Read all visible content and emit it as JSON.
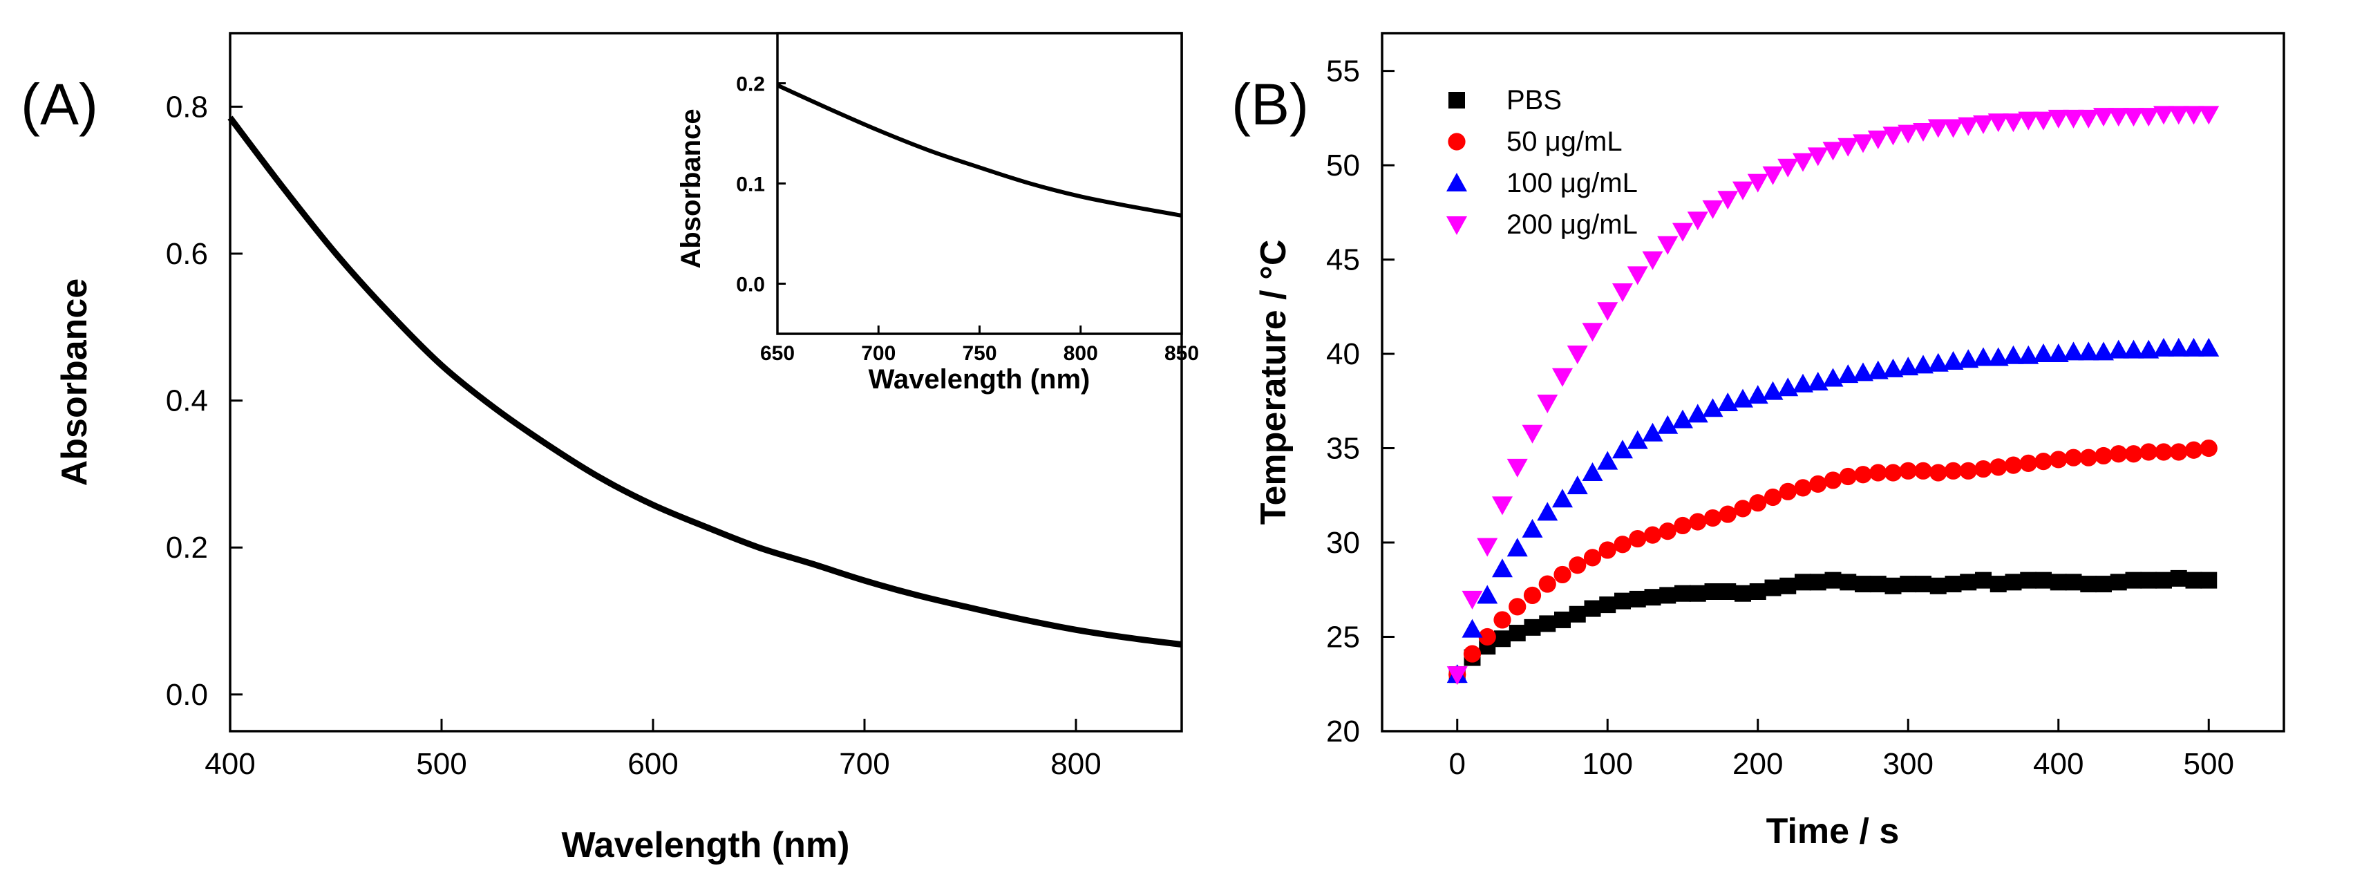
{
  "chart_data": [
    {
      "id": "A",
      "panel_label": "(A)",
      "type": "line",
      "xlabel": "Wavelength (nm)",
      "ylabel": "Absorbance",
      "xlim": [
        400,
        850
      ],
      "ylim": [
        -0.05,
        0.9
      ],
      "xticks": [
        400,
        500,
        600,
        700,
        800
      ],
      "yticks": [
        0.0,
        0.2,
        0.4,
        0.6,
        0.8
      ],
      "xtick_labels": [
        "400",
        "500",
        "600",
        "700",
        "800"
      ],
      "ytick_labels": [
        "0.0",
        "0.2",
        "0.4",
        "0.6",
        "0.8"
      ],
      "series": [
        {
          "name": "Absorbance",
          "color": "#000000",
          "x": [
            400,
            425,
            450,
            475,
            500,
            525,
            550,
            575,
            600,
            625,
            650,
            675,
            700,
            725,
            750,
            775,
            800,
            825,
            850
          ],
          "values": [
            0.785,
            0.69,
            0.6,
            0.52,
            0.448,
            0.39,
            0.34,
            0.295,
            0.258,
            0.228,
            0.2,
            0.178,
            0.155,
            0.135,
            0.118,
            0.102,
            0.088,
            0.077,
            0.068
          ]
        }
      ],
      "inset": {
        "type": "line",
        "xlabel": "Wavelength (nm)",
        "ylabel": "Absorbance",
        "xlim": [
          650,
          850
        ],
        "ylim": [
          -0.05,
          0.25
        ],
        "xticks": [
          650,
          700,
          750,
          800,
          850
        ],
        "yticks": [
          0.0,
          0.1,
          0.2
        ],
        "xtick_labels": [
          "650",
          "700",
          "750",
          "800",
          "850"
        ],
        "ytick_labels": [
          "0.0",
          "0.1",
          "0.2"
        ],
        "x": [
          650,
          675,
          700,
          725,
          750,
          775,
          800,
          825,
          850
        ],
        "values": [
          0.198,
          0.175,
          0.153,
          0.133,
          0.116,
          0.1,
          0.087,
          0.077,
          0.068
        ]
      }
    },
    {
      "id": "B",
      "panel_label": "(B)",
      "type": "scatter",
      "xlabel": "Time / s",
      "ylabel": "Temperature / °C",
      "xlim": [
        -50,
        550
      ],
      "ylim": [
        20,
        57
      ],
      "xticks": [
        0,
        100,
        200,
        300,
        400,
        500
      ],
      "yticks": [
        20,
        25,
        30,
        35,
        40,
        45,
        50,
        55
      ],
      "xtick_labels": [
        "0",
        "100",
        "200",
        "300",
        "400",
        "500"
      ],
      "ytick_labels": [
        "20",
        "25",
        "30",
        "35",
        "40",
        "45",
        "50",
        "55"
      ],
      "x": [
        0,
        10,
        20,
        30,
        40,
        50,
        60,
        70,
        80,
        90,
        100,
        110,
        120,
        130,
        140,
        150,
        160,
        170,
        180,
        190,
        200,
        210,
        220,
        230,
        240,
        250,
        260,
        270,
        280,
        290,
        300,
        310,
        320,
        330,
        340,
        350,
        360,
        370,
        380,
        390,
        400,
        410,
        420,
        430,
        440,
        450,
        460,
        470,
        480,
        490,
        500
      ],
      "legend": [
        "PBS",
        "50 μg/mL",
        "100 μg/mL",
        "200 μg/mL"
      ],
      "series": [
        {
          "name": "PBS",
          "color": "#000000",
          "marker": "square",
          "values": [
            23.0,
            23.9,
            24.5,
            24.9,
            25.2,
            25.5,
            25.7,
            25.9,
            26.2,
            26.5,
            26.7,
            26.9,
            27.0,
            27.1,
            27.2,
            27.3,
            27.3,
            27.4,
            27.4,
            27.3,
            27.4,
            27.6,
            27.7,
            27.9,
            27.9,
            28.0,
            27.9,
            27.8,
            27.8,
            27.7,
            27.8,
            27.8,
            27.7,
            27.8,
            27.9,
            28.0,
            27.8,
            27.9,
            28.0,
            28.0,
            27.9,
            27.9,
            27.8,
            27.8,
            27.9,
            28.0,
            28.0,
            28.0,
            28.1,
            28.0,
            28.0
          ]
        },
        {
          "name": "50 μg/mL",
          "color": "#ff0000",
          "marker": "circle",
          "values": [
            23.0,
            24.1,
            25.0,
            25.9,
            26.6,
            27.2,
            27.8,
            28.3,
            28.8,
            29.2,
            29.6,
            29.9,
            30.2,
            30.4,
            30.6,
            30.9,
            31.1,
            31.3,
            31.5,
            31.8,
            32.1,
            32.4,
            32.7,
            32.9,
            33.1,
            33.3,
            33.5,
            33.6,
            33.7,
            33.7,
            33.8,
            33.8,
            33.7,
            33.8,
            33.8,
            33.9,
            34.0,
            34.1,
            34.2,
            34.3,
            34.4,
            34.5,
            34.5,
            34.6,
            34.7,
            34.7,
            34.8,
            34.8,
            34.8,
            34.9,
            35.0
          ]
        },
        {
          "name": "100 μg/mL",
          "color": "#0000ff",
          "marker": "triangle-up",
          "values": [
            23.0,
            25.4,
            27.2,
            28.6,
            29.7,
            30.7,
            31.6,
            32.3,
            33.0,
            33.7,
            34.3,
            34.9,
            35.4,
            35.8,
            36.2,
            36.5,
            36.8,
            37.1,
            37.4,
            37.6,
            37.8,
            38.0,
            38.2,
            38.4,
            38.5,
            38.7,
            38.9,
            39.0,
            39.1,
            39.2,
            39.3,
            39.4,
            39.5,
            39.6,
            39.7,
            39.8,
            39.8,
            39.9,
            39.9,
            40.0,
            40.0,
            40.1,
            40.1,
            40.1,
            40.2,
            40.2,
            40.2,
            40.3,
            40.3,
            40.3,
            40.3
          ]
        },
        {
          "name": "200 μg/mL",
          "color": "#ff00ff",
          "marker": "triangle-down",
          "values": [
            23.0,
            27.0,
            29.8,
            32.0,
            34.0,
            35.8,
            37.4,
            38.8,
            40.0,
            41.2,
            42.3,
            43.3,
            44.2,
            45.0,
            45.8,
            46.5,
            47.1,
            47.7,
            48.2,
            48.7,
            49.1,
            49.5,
            49.9,
            50.2,
            50.5,
            50.8,
            51.0,
            51.2,
            51.4,
            51.6,
            51.7,
            51.8,
            52.0,
            52.0,
            52.1,
            52.2,
            52.3,
            52.3,
            52.4,
            52.4,
            52.5,
            52.5,
            52.5,
            52.6,
            52.6,
            52.6,
            52.6,
            52.7,
            52.7,
            52.7,
            52.7
          ]
        }
      ]
    }
  ]
}
